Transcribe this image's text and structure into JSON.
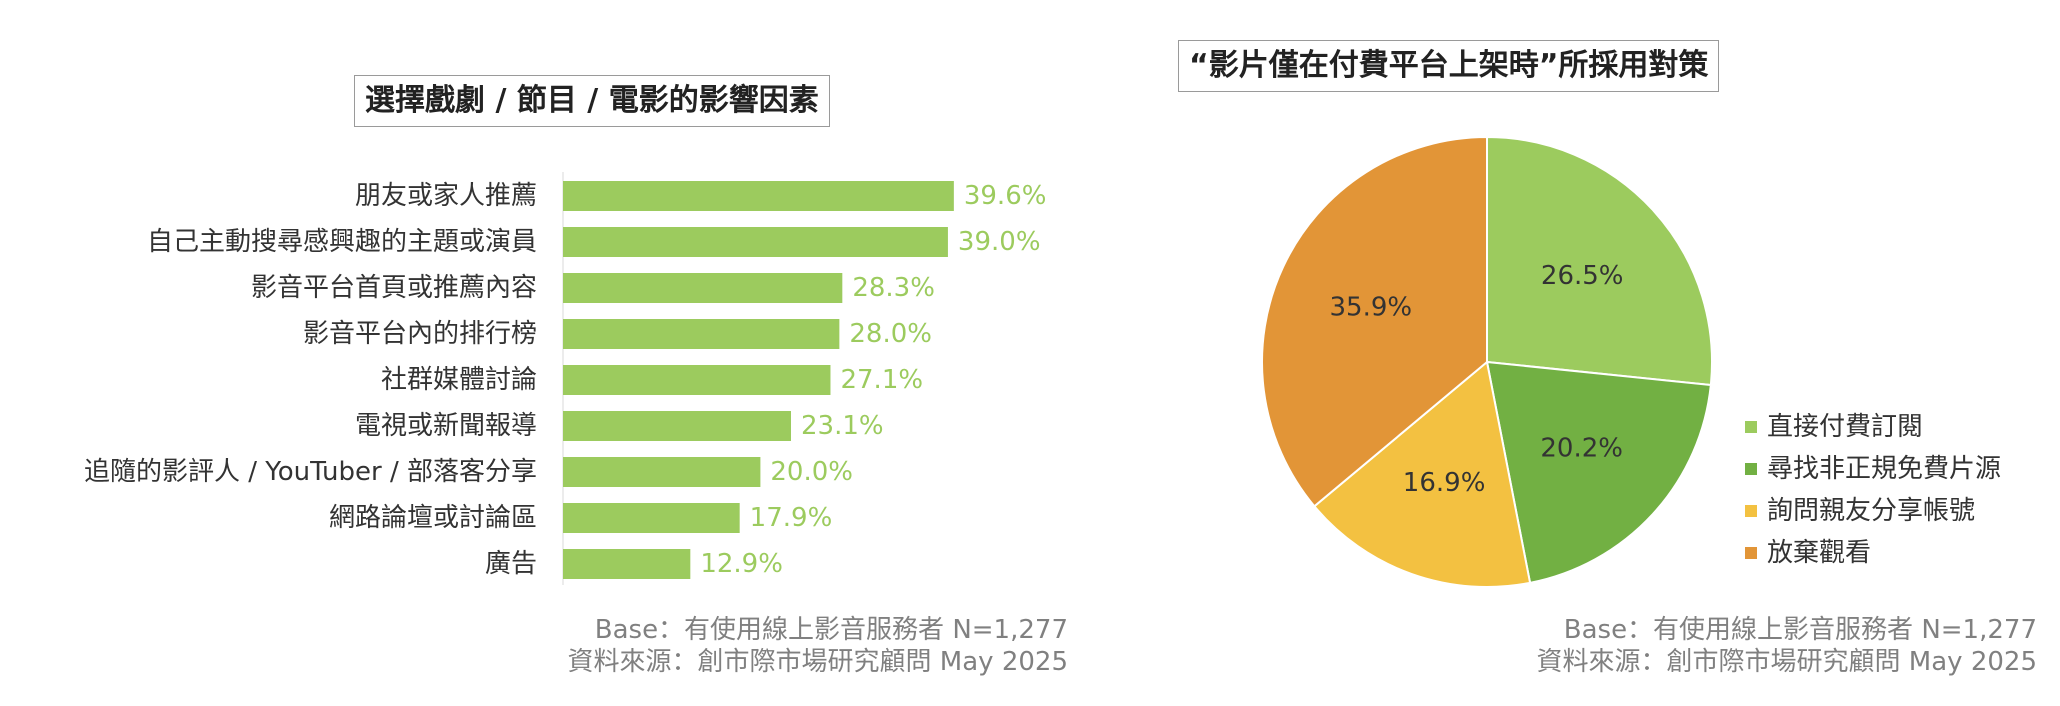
{
  "charts": {
    "left": {
      "title": "選擇戲劇 / 節目 / 電影的影響因素",
      "bar_color": "#9ccb5e",
      "source_lines": [
        "Base：有使用線上影音服務者 N=1,277",
        "資料來源：創市際市場研究顧問 May 2025"
      ]
    },
    "right": {
      "title": "“影片僅在付費平台上架時”所採用對策",
      "source_lines": [
        "Base：有使用線上影音服務者 N=1,277",
        "資料來源：創市際市場研究顧問 May 2025"
      ]
    }
  },
  "chart_data": [
    {
      "type": "bar",
      "orientation": "horizontal",
      "title": "選擇戲劇 / 節目 / 電影的影響因素",
      "categories": [
        "朋友或家人推薦",
        "自己主動搜尋感興趣的主題或演員",
        "影音平台首頁或推薦內容",
        "影音平台內的排行榜",
        "社群媒體討論",
        "電視或新聞報導",
        "追隨的影評人 / YouTuber / 部落客分享",
        "網路論壇或討論區",
        "廣告"
      ],
      "values": [
        39.6,
        39.0,
        28.3,
        28.0,
        27.1,
        23.1,
        20.0,
        17.9,
        12.9
      ],
      "value_labels": [
        "39.6%",
        "39.0%",
        "28.3%",
        "28.0%",
        "27.1%",
        "23.1%",
        "20.0%",
        "17.9%",
        "12.9%"
      ],
      "unit": "%",
      "grid": false,
      "color": "#9ccb5e"
    },
    {
      "type": "pie",
      "title": "“影片僅在付費平台上架時”所採用對策",
      "labels": [
        "直接付費訂閱",
        "尋找非正規免費片源",
        "詢問親友分享帳號",
        "放棄觀看"
      ],
      "values": [
        26.5,
        20.2,
        16.9,
        35.9
      ],
      "value_labels": [
        "26.5%",
        "20.2%",
        "16.9%",
        "35.9%"
      ],
      "colors": [
        "#9ccb5e",
        "#72b043",
        "#f3c141",
        "#e29537"
      ],
      "legend_position": "right"
    }
  ]
}
